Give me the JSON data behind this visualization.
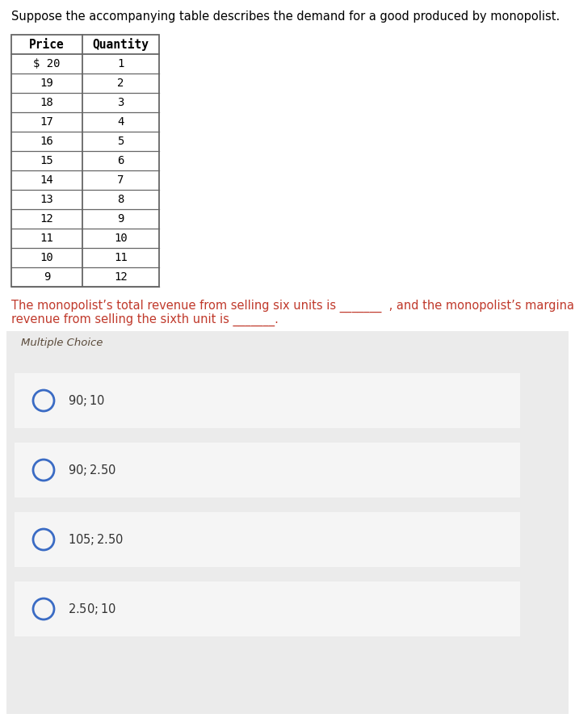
{
  "title": "Suppose the accompanying table describes the demand for a good produced by monopolist.",
  "title_color": "#000000",
  "title_fontsize": 10.5,
  "table_headers": [
    "Price",
    "Quantity"
  ],
  "table_prices": [
    "$ 20",
    "19",
    "18",
    "17",
    "16",
    "15",
    "14",
    "13",
    "12",
    "11",
    "10",
    "9"
  ],
  "table_quantities": [
    "1",
    "2",
    "3",
    "4",
    "5",
    "6",
    "7",
    "8",
    "9",
    "10",
    "11",
    "12"
  ],
  "question_line1": "The monopolist’s total revenue from selling six units is _______  , and the monopolist’s marginal",
  "question_line2": "revenue from selling the sixth unit is _______.",
  "question_color": "#c0392b",
  "question_fontsize": 10.5,
  "mc_label": "Multiple Choice",
  "mc_label_color": "#5a4a3a",
  "mc_fontsize": 9.5,
  "choices": [
    "$90; $10",
    "$90; $2.50",
    "$105; $2.50",
    "$2.50; $10"
  ],
  "choice_fontsize": 10.5,
  "choice_color": "#333333",
  "circle_color": "#3a6bc4",
  "bg_color": "#ffffff",
  "mc_bg_color": "#ebebeb",
  "choice_box_bg": "#f5f5f5",
  "table_border_color": "#666666"
}
